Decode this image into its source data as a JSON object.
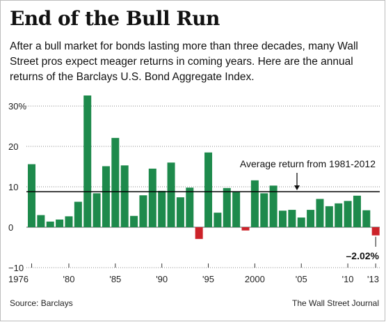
{
  "title": "End of the Bull Run",
  "subtitle": "After a bull market for bonds lasting more than three decades, many Wall Street pros expect meager returns in coming years. Here are the annual returns of the Barclays U.S. Bond Aggregate Index.",
  "source": "Source: Barclays",
  "credit": "The Wall Street Journal",
  "colors": {
    "positive": "#1e8a4c",
    "negative": "#cc2229",
    "average_line": "#000000",
    "grid": "#888888"
  },
  "chart_data": {
    "type": "bar",
    "x": [
      1976,
      1977,
      1978,
      1979,
      1980,
      1981,
      1982,
      1983,
      1984,
      1985,
      1986,
      1987,
      1988,
      1989,
      1990,
      1991,
      1992,
      1993,
      1994,
      1995,
      1996,
      1997,
      1998,
      1999,
      2000,
      2001,
      2002,
      2003,
      2004,
      2005,
      2006,
      2007,
      2008,
      2009,
      2010,
      2011,
      2012,
      2013
    ],
    "values": [
      15.6,
      3.0,
      1.4,
      1.9,
      2.7,
      6.3,
      32.6,
      8.4,
      15.1,
      22.1,
      15.3,
      2.8,
      7.9,
      14.5,
      9.0,
      16.0,
      7.4,
      9.8,
      -2.9,
      18.5,
      3.6,
      9.7,
      8.7,
      -0.8,
      11.6,
      8.4,
      10.3,
      4.1,
      4.3,
      2.4,
      4.3,
      7.0,
      5.2,
      5.9,
      6.5,
      7.8,
      4.2,
      -2.02
    ],
    "xticks": [
      1976,
      1980,
      1985,
      1990,
      1995,
      2000,
      2005,
      2010,
      2013
    ],
    "xtick_labels": [
      "1976",
      "'80",
      "'85",
      "'90",
      "'95",
      "2000",
      "'05",
      "'10",
      "'13"
    ],
    "yticks": [
      -10,
      0,
      10,
      20,
      30
    ],
    "ytick_labels": [
      "−10",
      "0",
      "10",
      "20",
      "30%"
    ],
    "ylim": [
      -10,
      32.6
    ],
    "grid": "dotted horizontal",
    "average_line": {
      "value": 8.8,
      "label": "Average return from 1981-2012"
    },
    "annotation": {
      "year": 2013,
      "label": "–2.02%"
    },
    "xlabel": "",
    "ylabel": ""
  }
}
